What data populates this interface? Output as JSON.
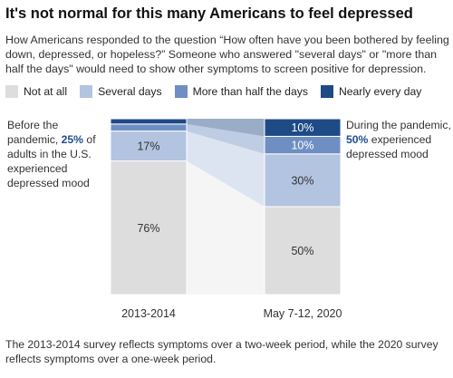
{
  "title": "It's not normal for this many Americans to feel depressed",
  "subtitle": "How Americans responded to the question “How often have you been bothered by feeling down, depressed, or hopeless?” Someone who answered \"several days\" or \"more than half the days\" would need to show other symptoms to screen positive for depression.",
  "legend": [
    {
      "label": "Not at all",
      "color": "#dddddd"
    },
    {
      "label": "Several days",
      "color": "#b3c4e0"
    },
    {
      "label": "More than half the days",
      "color": "#6f8fc4"
    },
    {
      "label": "Nearly every day",
      "color": "#1e4a86"
    }
  ],
  "left_note": {
    "pre": "Before the pandemic, ",
    "highlight": "25%",
    "post": " of adults in the U.S. experienced depressed mood"
  },
  "right_note": {
    "pre": "During the pandemic, ",
    "highlight": "50%",
    "post": " experienced depressed mood"
  },
  "footer": "The 2013-2014 survey reflects symptoms over a two-week period, while the 2020 survey reflects symptoms over a one-week period.",
  "chart_data": {
    "type": "bar",
    "stacked": true,
    "categories": [
      "2013-2014",
      "May 7-12, 2020"
    ],
    "series": [
      {
        "name": "Not at all",
        "values": [
          76,
          50
        ],
        "labels": [
          "76%",
          "50%"
        ],
        "color": "#dddddd"
      },
      {
        "name": "Several days",
        "values": [
          17,
          30
        ],
        "labels": [
          "17%",
          "30%"
        ],
        "color": "#b3c4e0"
      },
      {
        "name": "More than half the days",
        "values": [
          4,
          10
        ],
        "labels": [
          "",
          "10%"
        ],
        "color": "#6f8fc4"
      },
      {
        "name": "Nearly every day",
        "values": [
          3,
          10
        ],
        "labels": [
          "",
          "10%"
        ],
        "color": "#1e4a86"
      }
    ],
    "ylim": [
      0,
      100
    ],
    "legend_position": "top",
    "grid": false
  }
}
